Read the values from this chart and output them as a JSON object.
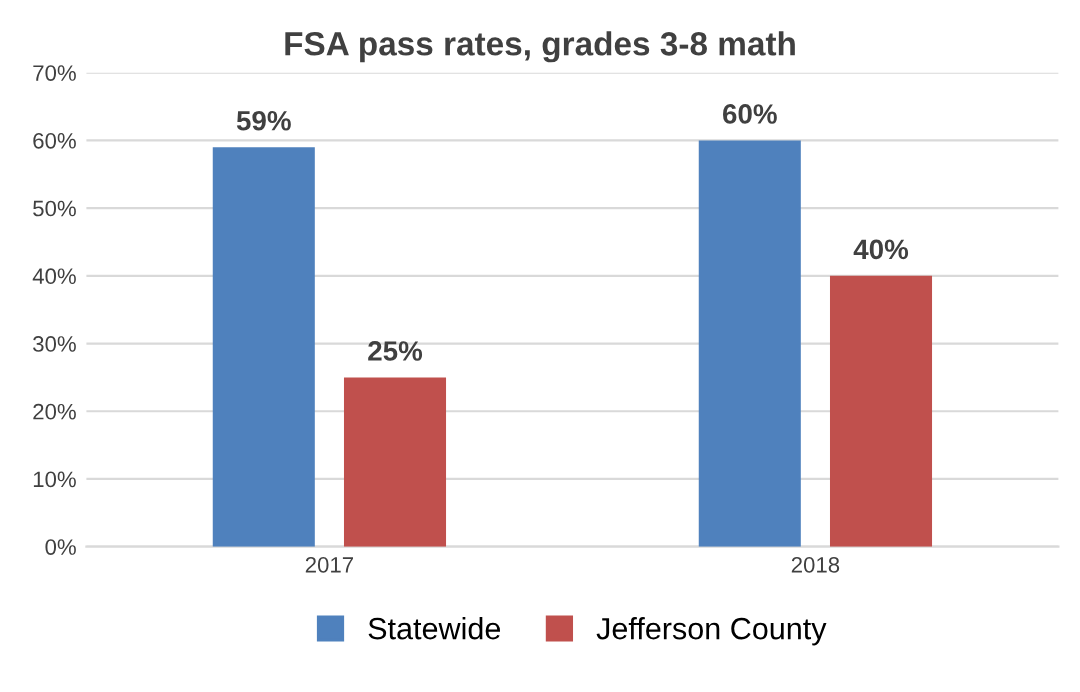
{
  "chart_data": {
    "type": "bar",
    "title": "FSA pass rates, grades 3-8 math",
    "categories": [
      "2017",
      "2018"
    ],
    "series": [
      {
        "name": "Statewide",
        "color": "#4f81bd",
        "values": [
          59,
          60
        ],
        "value_labels": [
          "59%",
          "60%"
        ]
      },
      {
        "name": "Jefferson County",
        "color": "#c0504d",
        "values": [
          25,
          40
        ],
        "value_labels": [
          "25%",
          "40%"
        ]
      }
    ],
    "ylim": [
      0,
      70
    ],
    "yticks": [
      {
        "value": 0,
        "label": "0%"
      },
      {
        "value": 10,
        "label": "10%"
      },
      {
        "value": 20,
        "label": "20%"
      },
      {
        "value": 30,
        "label": "30%"
      },
      {
        "value": 40,
        "label": "40%"
      },
      {
        "value": 50,
        "label": "50%"
      },
      {
        "value": 60,
        "label": "60%"
      },
      {
        "value": 70,
        "label": "70%"
      }
    ],
    "grid": "y",
    "legend": "bottom"
  }
}
